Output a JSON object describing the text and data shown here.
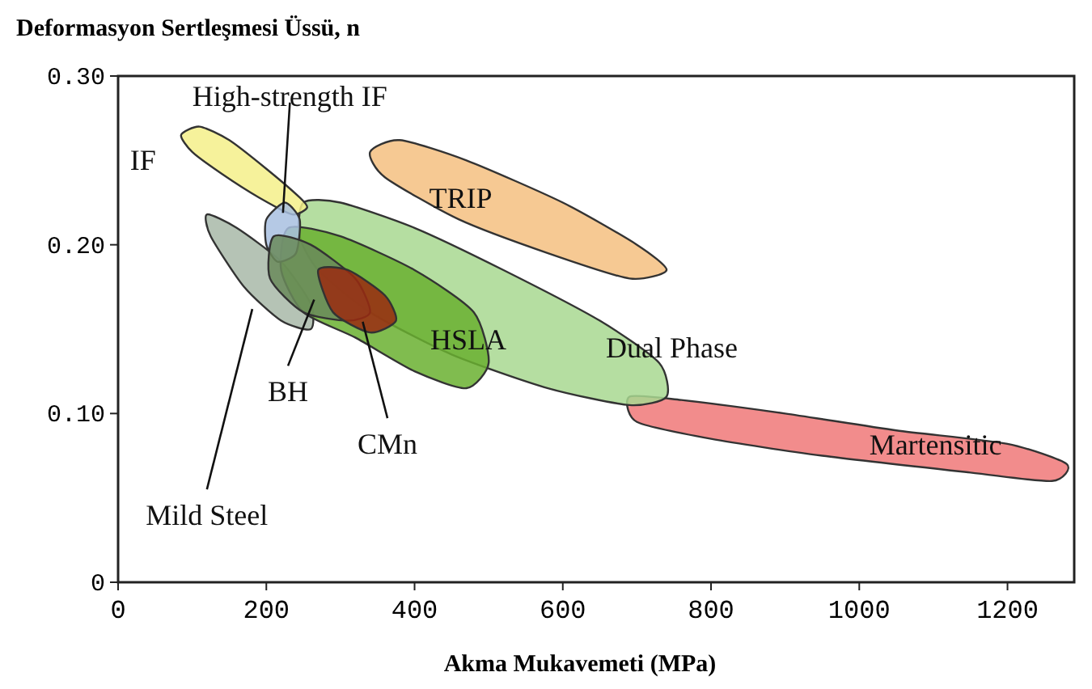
{
  "chart_data": {
    "type": "area",
    "ylabel": "Deformasyon Sertleşmesi Üssü, n",
    "xlabel": "Akma Mukavemeti (MPa)",
    "xlim": [
      0,
      1290
    ],
    "ylim": [
      0,
      0.3
    ],
    "xticks": [
      0,
      200,
      400,
      600,
      800,
      1000,
      1200
    ],
    "yticks": [
      0,
      {
        "value": 0.1,
        "label": "0.10"
      },
      {
        "value": 0.2,
        "label": "0.20"
      },
      {
        "value": 0.3,
        "label": "0.30"
      }
    ],
    "grid": false,
    "legend": false,
    "series": [
      {
        "name": "Martensitic",
        "color": "#f07878",
        "x": [
          690,
          760,
          900,
          1050,
          1200,
          1280,
          1260,
          1150,
          950,
          800,
          700
        ],
        "values": [
          0.11,
          0.108,
          0.1,
          0.09,
          0.082,
          0.07,
          0.06,
          0.065,
          0.075,
          0.085,
          0.095
        ]
      },
      {
        "name": "TRIP",
        "color": "#f5c080",
        "x": [
          340,
          380,
          470,
          600,
          700,
          740,
          690,
          580,
          460,
          360
        ],
        "values": [
          0.255,
          0.262,
          0.25,
          0.225,
          0.2,
          0.185,
          0.18,
          0.195,
          0.215,
          0.24
        ]
      },
      {
        "name": "Dual Phase",
        "color": "#a8d890",
        "x": [
          250,
          300,
          400,
          520,
          650,
          730,
          740,
          690,
          580,
          450,
          340,
          270,
          245
        ],
        "values": [
          0.225,
          0.225,
          0.21,
          0.185,
          0.155,
          0.13,
          0.11,
          0.105,
          0.115,
          0.135,
          0.16,
          0.185,
          0.205
        ]
      },
      {
        "name": "IF",
        "color": "#f5f08a",
        "x": [
          85,
          110,
          150,
          200,
          245,
          255,
          235,
          190,
          140,
          100
        ],
        "values": [
          0.265,
          0.27,
          0.262,
          0.245,
          0.228,
          0.222,
          0.218,
          0.228,
          0.242,
          0.255
        ]
      },
      {
        "name": "Mild Steel",
        "color": "#a8b8a8",
        "x": [
          120,
          160,
          220,
          260,
          260,
          220,
          170,
          125
        ],
        "values": [
          0.218,
          0.21,
          0.19,
          0.165,
          0.15,
          0.155,
          0.175,
          0.205
        ]
      },
      {
        "name": "HSLA",
        "color": "#6ab030",
        "x": [
          230,
          300,
          400,
          480,
          500,
          470,
          400,
          320,
          250,
          220
        ],
        "values": [
          0.21,
          0.205,
          0.185,
          0.16,
          0.13,
          0.115,
          0.125,
          0.145,
          0.16,
          0.185
        ]
      },
      {
        "name": "High-strength IF",
        "color": "#a8c0e0",
        "x": [
          200,
          225,
          245,
          240,
          215,
          200
        ],
        "values": [
          0.215,
          0.225,
          0.215,
          0.195,
          0.19,
          0.2
        ]
      },
      {
        "name": "BH",
        "color": "#6a8a5a",
        "x": [
          210,
          260,
          320,
          340,
          310,
          250,
          205
        ],
        "values": [
          0.205,
          0.2,
          0.18,
          0.16,
          0.155,
          0.16,
          0.18
        ]
      },
      {
        "name": "CMn",
        "color": "#9a2a10",
        "x": [
          270,
          310,
          360,
          375,
          340,
          290
        ],
        "values": [
          0.185,
          0.185,
          0.17,
          0.155,
          0.148,
          0.16
        ]
      }
    ]
  }
}
